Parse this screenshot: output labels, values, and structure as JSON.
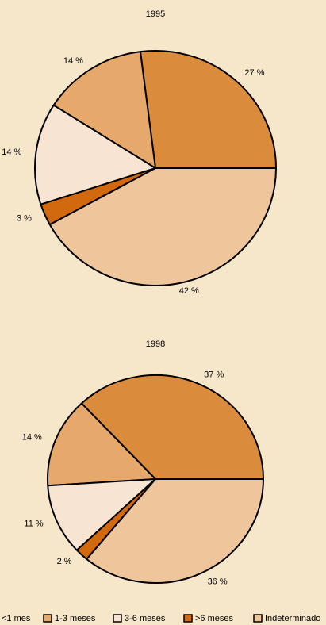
{
  "chart_data": [
    {
      "type": "pie",
      "title": "1995",
      "values": [
        27,
        14,
        14,
        3,
        42
      ],
      "value_labels": [
        "27 %",
        "14 %",
        "14 %",
        "3 %",
        "42 %"
      ]
    },
    {
      "type": "pie",
      "title": "1998",
      "values": [
        37,
        14,
        11,
        2,
        36
      ],
      "value_labels": [
        "37 %",
        "14 %",
        "11 %",
        "2 %",
        "36 %"
      ]
    }
  ],
  "legend": {
    "labels": [
      "<1 mes",
      "1-3 meses",
      "3-6 meses",
      ">6 meses",
      "Indeterminado"
    ],
    "colors": [
      "#da8b3c",
      "#e7a86c",
      "#f8e4d2",
      "#d2690f",
      "#efc59c"
    ]
  }
}
